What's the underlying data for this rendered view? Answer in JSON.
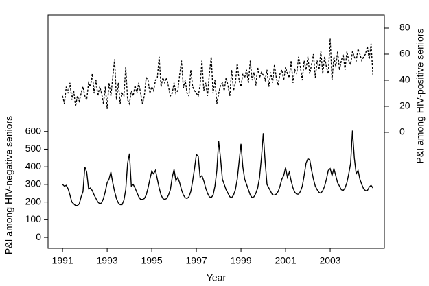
{
  "chart_data": {
    "type": "line",
    "xlabel": "Year",
    "ylabel": "P&I among HIV-negative seniors",
    "y2label": "P&I among HIV-positive seniors",
    "xlim": [
      1990.35,
      2005.43
    ],
    "xticks": [
      1991,
      1993,
      1995,
      1997,
      1999,
      2001,
      2003
    ],
    "ylim": [
      -62,
      1260
    ],
    "yticks": [
      0,
      100,
      200,
      300,
      400,
      500,
      600
    ],
    "y2lim": [
      -89,
      90
    ],
    "y2ticks": [
      0,
      20,
      40,
      60,
      80
    ],
    "x": [
      1991,
      1991.083,
      1991.167,
      1991.25,
      1991.333,
      1991.417,
      1991.5,
      1991.583,
      1991.667,
      1991.75,
      1991.833,
      1991.917,
      1992,
      1992.083,
      1992.167,
      1992.25,
      1992.333,
      1992.417,
      1992.5,
      1992.583,
      1992.667,
      1992.75,
      1992.833,
      1992.917,
      1993,
      1993.083,
      1993.167,
      1993.25,
      1993.333,
      1993.417,
      1993.5,
      1993.583,
      1993.667,
      1993.75,
      1993.833,
      1993.917,
      1994,
      1994.083,
      1994.167,
      1994.25,
      1994.333,
      1994.417,
      1994.5,
      1994.583,
      1994.667,
      1994.75,
      1994.833,
      1994.917,
      1995,
      1995.083,
      1995.167,
      1995.25,
      1995.333,
      1995.417,
      1995.5,
      1995.583,
      1995.667,
      1995.75,
      1995.833,
      1995.917,
      1996,
      1996.083,
      1996.167,
      1996.25,
      1996.333,
      1996.417,
      1996.5,
      1996.583,
      1996.667,
      1996.75,
      1996.833,
      1996.917,
      1997,
      1997.083,
      1997.167,
      1997.25,
      1997.333,
      1997.417,
      1997.5,
      1997.583,
      1997.667,
      1997.75,
      1997.833,
      1997.917,
      1998,
      1998.083,
      1998.167,
      1998.25,
      1998.333,
      1998.417,
      1998.5,
      1998.583,
      1998.667,
      1998.75,
      1998.833,
      1998.917,
      1999,
      1999.083,
      1999.167,
      1999.25,
      1999.333,
      1999.417,
      1999.5,
      1999.583,
      1999.667,
      1999.75,
      1999.833,
      1999.917,
      2000,
      2000.083,
      2000.167,
      2000.25,
      2000.333,
      2000.417,
      2000.5,
      2000.583,
      2000.667,
      2000.75,
      2000.833,
      2000.917,
      2001,
      2001.083,
      2001.167,
      2001.25,
      2001.333,
      2001.417,
      2001.5,
      2001.583,
      2001.667,
      2001.75,
      2001.833,
      2001.917,
      2002,
      2002.083,
      2002.167,
      2002.25,
      2002.333,
      2002.417,
      2002.5,
      2002.583,
      2002.667,
      2002.75,
      2002.833,
      2002.917,
      2003,
      2003.083,
      2003.167,
      2003.25,
      2003.333,
      2003.417,
      2003.5,
      2003.583,
      2003.667,
      2003.75,
      2003.833,
      2003.917,
      2004,
      2004.083,
      2004.167,
      2004.25,
      2004.333,
      2004.417,
      2004.5,
      2004.583,
      2004.667,
      2004.75,
      2004.833,
      2004.917
    ],
    "series": [
      {
        "color": "#000000",
        "dash": "solid",
        "values": [
          300,
          290,
          295,
          275,
          240,
          200,
          190,
          180,
          180,
          190,
          230,
          260,
          400,
          370,
          275,
          280,
          265,
          240,
          220,
          200,
          190,
          195,
          220,
          260,
          310,
          330,
          370,
          310,
          260,
          220,
          195,
          185,
          185,
          210,
          270,
          420,
          475,
          290,
          300,
          280,
          255,
          230,
          215,
          215,
          220,
          240,
          280,
          330,
          375,
          360,
          380,
          330,
          280,
          240,
          220,
          215,
          220,
          240,
          270,
          340,
          385,
          320,
          340,
          310,
          270,
          240,
          225,
          220,
          230,
          260,
          320,
          390,
          470,
          460,
          340,
          350,
          320,
          280,
          250,
          230,
          225,
          240,
          290,
          380,
          545,
          450,
          330,
          300,
          270,
          250,
          230,
          225,
          240,
          270,
          330,
          430,
          530,
          400,
          330,
          300,
          270,
          240,
          225,
          230,
          250,
          280,
          340,
          450,
          590,
          430,
          300,
          280,
          260,
          240,
          240,
          245,
          260,
          290,
          330,
          350,
          395,
          340,
          370,
          320,
          280,
          255,
          245,
          245,
          260,
          290,
          350,
          420,
          445,
          440,
          380,
          330,
          290,
          270,
          255,
          250,
          265,
          290,
          330,
          380,
          390,
          350,
          390,
          350,
          310,
          290,
          270,
          265,
          280,
          310,
          360,
          420,
          605,
          450,
          360,
          380,
          330,
          300,
          275,
          265,
          265,
          285,
          295,
          280
        ]
      },
      {
        "color": "#000000",
        "dash": "dashed",
        "axis": "y2",
        "values": [
          28,
          22,
          35,
          30,
          38,
          25,
          32,
          20,
          28,
          24,
          30,
          35,
          28,
          25,
          38,
          35,
          45,
          30,
          40,
          28,
          35,
          30,
          22,
          35,
          18,
          38,
          28,
          42,
          56,
          25,
          38,
          22,
          30,
          28,
          50,
          25,
          22,
          32,
          28,
          36,
          30,
          38,
          30,
          22,
          28,
          42,
          40,
          30,
          35,
          32,
          40,
          42,
          58,
          35,
          42,
          38,
          42,
          35,
          28,
          30,
          38,
          30,
          32,
          44,
          55,
          34,
          40,
          30,
          28,
          48,
          35,
          32,
          30,
          28,
          36,
          55,
          32,
          38,
          28,
          45,
          58,
          30,
          40,
          22,
          30,
          36,
          38,
          32,
          42,
          36,
          28,
          48,
          32,
          38,
          53,
          40,
          35,
          45,
          42,
          48,
          38,
          55,
          40,
          46,
          36,
          50,
          42,
          46,
          44,
          40,
          48,
          35,
          46,
          38,
          52,
          42,
          36,
          45,
          48,
          40,
          50,
          45,
          42,
          55,
          38,
          48,
          45,
          58,
          50,
          40,
          55,
          48,
          58,
          45,
          52,
          60,
          42,
          55,
          48,
          62,
          45,
          58,
          50,
          45,
          72,
          40,
          58,
          50,
          62,
          48,
          55,
          60,
          48,
          62,
          55,
          52,
          62,
          58,
          55,
          64,
          60,
          55,
          58,
          60,
          66,
          56,
          68,
          44
        ]
      }
    ]
  }
}
